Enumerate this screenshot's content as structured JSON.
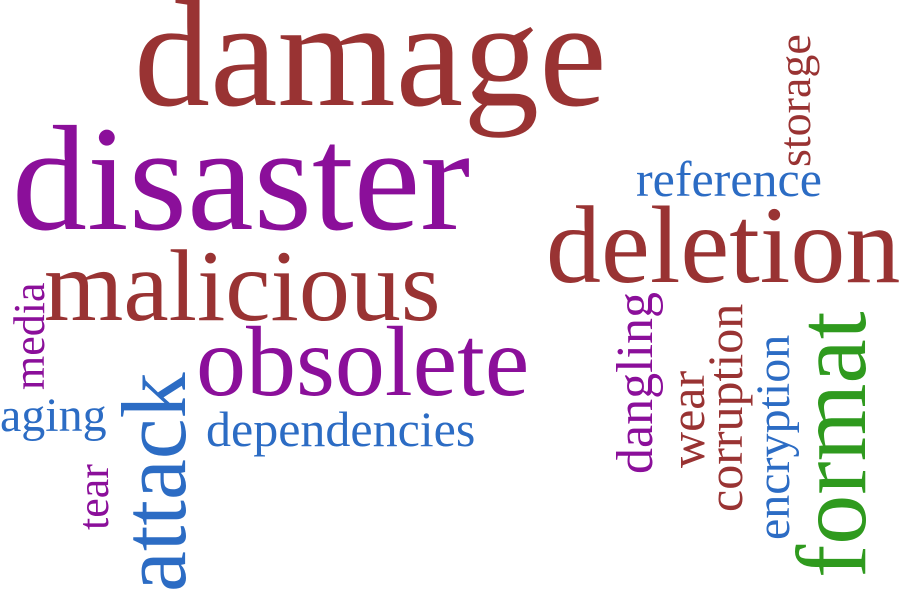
{
  "colors": {
    "red": "#993333",
    "purple": "#8b0f9a",
    "blue": "#2c6cc4",
    "green": "#2f9a1e"
  },
  "words": [
    {
      "id": "damage",
      "text": "damage",
      "color": "#993333"
    },
    {
      "id": "disaster",
      "text": "disaster",
      "color": "#8b0f9a"
    },
    {
      "id": "deletion",
      "text": "deletion",
      "color": "#993333"
    },
    {
      "id": "malicious",
      "text": "malicious",
      "color": "#993333"
    },
    {
      "id": "obsolete",
      "text": "obsolete",
      "color": "#8b0f9a"
    },
    {
      "id": "reference",
      "text": "reference",
      "color": "#2c6cc4"
    },
    {
      "id": "storage",
      "text": "storage",
      "color": "#993333"
    },
    {
      "id": "media",
      "text": "media",
      "color": "#8b0f9a"
    },
    {
      "id": "aging",
      "text": "aging",
      "color": "#2c6cc4"
    },
    {
      "id": "attack",
      "text": "attack",
      "color": "#2c6cc4"
    },
    {
      "id": "dependencies",
      "text": "dependencies",
      "color": "#2c6cc4"
    },
    {
      "id": "tear",
      "text": "tear",
      "color": "#8b0f9a"
    },
    {
      "id": "dangling",
      "text": "dangling",
      "color": "#8b0f9a"
    },
    {
      "id": "wear",
      "text": "wear",
      "color": "#993333"
    },
    {
      "id": "corruption",
      "text": "corruption",
      "color": "#993333"
    },
    {
      "id": "encryption",
      "text": "encryption",
      "color": "#2c6cc4"
    },
    {
      "id": "format",
      "text": "format",
      "color": "#2f9a1e"
    }
  ]
}
